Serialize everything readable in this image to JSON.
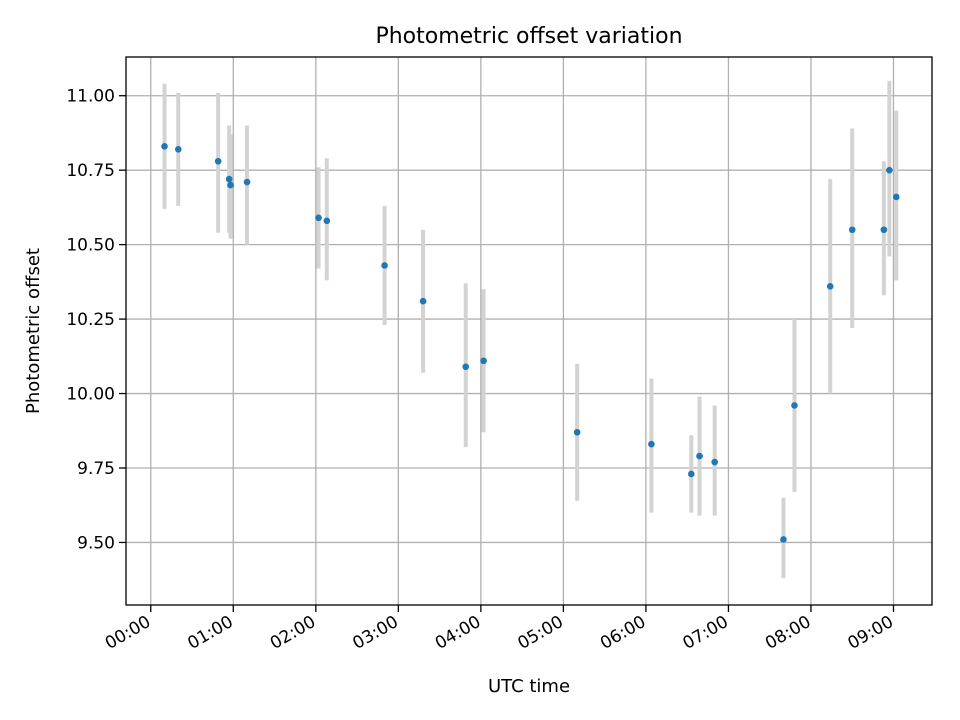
{
  "chart_data": {
    "type": "scatter",
    "title": "Photometric offset variation",
    "xlabel": "UTC time",
    "ylabel": "Photometric offset",
    "x_tick_labels": [
      "00:00",
      "01:00",
      "02:00",
      "03:00",
      "04:00",
      "05:00",
      "06:00",
      "07:00",
      "08:00",
      "09:00"
    ],
    "y_tick_labels": [
      "9.50",
      "9.75",
      "10.00",
      "10.25",
      "10.50",
      "10.75",
      "11.00"
    ],
    "xlim": [
      "23:42",
      "09:28"
    ],
    "ylim": [
      9.29,
      11.13
    ],
    "grid": true,
    "legend": "none",
    "colors": {
      "points": "#1f77b4",
      "errorbars": "#d3d3d3",
      "grid": "#b0b0b0"
    },
    "points": [
      {
        "x": "00:10",
        "y": 10.83,
        "lo": 10.62,
        "hi": 11.04
      },
      {
        "x": "00:20",
        "y": 10.82,
        "lo": 10.63,
        "hi": 11.01
      },
      {
        "x": "00:49",
        "y": 10.78,
        "lo": 10.54,
        "hi": 11.01
      },
      {
        "x": "00:57",
        "y": 10.72,
        "lo": 10.54,
        "hi": 10.9
      },
      {
        "x": "00:58",
        "y": 10.7,
        "lo": 10.52,
        "hi": 10.87
      },
      {
        "x": "01:10",
        "y": 10.71,
        "lo": 10.5,
        "hi": 10.9
      },
      {
        "x": "02:02",
        "y": 10.59,
        "lo": 10.42,
        "hi": 10.76
      },
      {
        "x": "02:08",
        "y": 10.58,
        "lo": 10.38,
        "hi": 10.79
      },
      {
        "x": "02:50",
        "y": 10.43,
        "lo": 10.23,
        "hi": 10.63
      },
      {
        "x": "03:18",
        "y": 10.31,
        "lo": 10.07,
        "hi": 10.55
      },
      {
        "x": "03:49",
        "y": 10.09,
        "lo": 9.82,
        "hi": 10.37
      },
      {
        "x": "04:02",
        "y": 10.11,
        "lo": 9.87,
        "hi": 10.35
      },
      {
        "x": "05:10",
        "y": 9.87,
        "lo": 9.64,
        "hi": 10.1
      },
      {
        "x": "06:04",
        "y": 9.83,
        "lo": 9.6,
        "hi": 10.05
      },
      {
        "x": "06:33",
        "y": 9.73,
        "lo": 9.6,
        "hi": 9.86
      },
      {
        "x": "06:39",
        "y": 9.79,
        "lo": 9.59,
        "hi": 9.99
      },
      {
        "x": "06:50",
        "y": 9.77,
        "lo": 9.59,
        "hi": 9.96
      },
      {
        "x": "07:40",
        "y": 9.51,
        "lo": 9.38,
        "hi": 9.65
      },
      {
        "x": "07:48",
        "y": 9.96,
        "lo": 9.67,
        "hi": 10.25
      },
      {
        "x": "08:14",
        "y": 10.36,
        "lo": 10.0,
        "hi": 10.72
      },
      {
        "x": "08:30",
        "y": 10.55,
        "lo": 10.22,
        "hi": 10.89
      },
      {
        "x": "08:53",
        "y": 10.55,
        "lo": 10.33,
        "hi": 10.78
      },
      {
        "x": "08:57",
        "y": 10.75,
        "lo": 10.46,
        "hi": 11.05
      },
      {
        "x": "09:02",
        "y": 10.66,
        "lo": 10.38,
        "hi": 10.95
      }
    ]
  }
}
